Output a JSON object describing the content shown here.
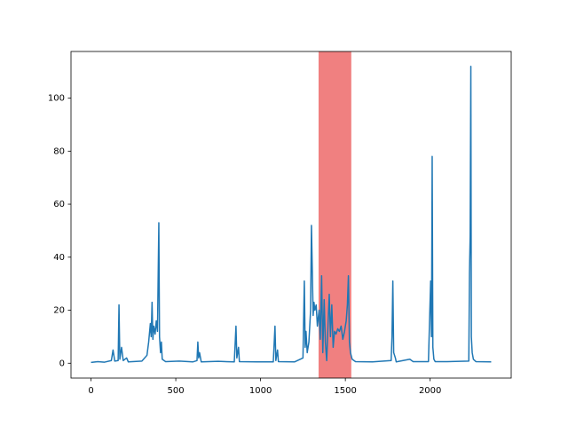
{
  "chart_data": {
    "type": "line",
    "x": [
      0,
      40,
      80,
      120,
      130,
      140,
      160,
      165,
      170,
      180,
      190,
      210,
      220,
      300,
      330,
      340,
      350,
      355,
      360,
      365,
      370,
      378,
      385,
      392,
      400,
      404,
      410,
      415,
      420,
      440,
      520,
      600,
      625,
      630,
      635,
      640,
      650,
      750,
      845,
      855,
      860,
      870,
      875,
      980,
      1075,
      1085,
      1090,
      1100,
      1105,
      1200,
      1250,
      1258,
      1263,
      1268,
      1275,
      1285,
      1295,
      1300,
      1305,
      1310,
      1315,
      1320,
      1328,
      1335,
      1345,
      1352,
      1360,
      1367,
      1375,
      1382,
      1390,
      1398,
      1405,
      1412,
      1420,
      1428,
      1436,
      1445,
      1455,
      1465,
      1475,
      1485,
      1495,
      1505,
      1512,
      1518,
      1524,
      1530,
      1540,
      1560,
      1660,
      1770,
      1775,
      1780,
      1785,
      1795,
      1800,
      1880,
      1900,
      1990,
      2003,
      2008,
      2012,
      2016,
      2022,
      2030,
      2100,
      2228,
      2232,
      2236,
      2240,
      2243,
      2248,
      2255,
      2270,
      2360
    ],
    "values": [
      0.3,
      0.6,
      0.4,
      1.0,
      5,
      0.8,
      1.0,
      22,
      1.5,
      6,
      1.0,
      2,
      0.5,
      0.8,
      3,
      8,
      15,
      10,
      23,
      9,
      14,
      11,
      16,
      12,
      53,
      10,
      4,
      8,
      1.5,
      0.6,
      0.8,
      0.5,
      1,
      8,
      2,
      4,
      0.5,
      0.7,
      0.5,
      14,
      2,
      6,
      0.6,
      0.5,
      0.5,
      14,
      1,
      5,
      0.6,
      0.5,
      2,
      31,
      6,
      12,
      4,
      8,
      20,
      52,
      35,
      18,
      23,
      20,
      22,
      14,
      20,
      9,
      33,
      4,
      24,
      8,
      1,
      15,
      26,
      10,
      22,
      6,
      12,
      11,
      13,
      12,
      14,
      9,
      12,
      16,
      22,
      33,
      8,
      4,
      1.5,
      0.6,
      0.5,
      1,
      10,
      31,
      4,
      2,
      0.5,
      1.5,
      0.6,
      0.6,
      31,
      10,
      78,
      6,
      1.5,
      0.6,
      0.6,
      0.8,
      34,
      48,
      112,
      10,
      4,
      1.5,
      0.6,
      0.5
    ],
    "color": "#1f77b4",
    "spans": [
      {
        "x0": 1342,
        "x1": 1535,
        "color": "#f08080"
      }
    ],
    "xlim": [
      -118,
      2478
    ],
    "xticks": [
      0,
      500,
      1000,
      1500,
      2000
    ],
    "ylim": [
      -5.6,
      117.6
    ],
    "yticks": [
      0,
      20,
      40,
      60,
      80,
      100
    ]
  }
}
